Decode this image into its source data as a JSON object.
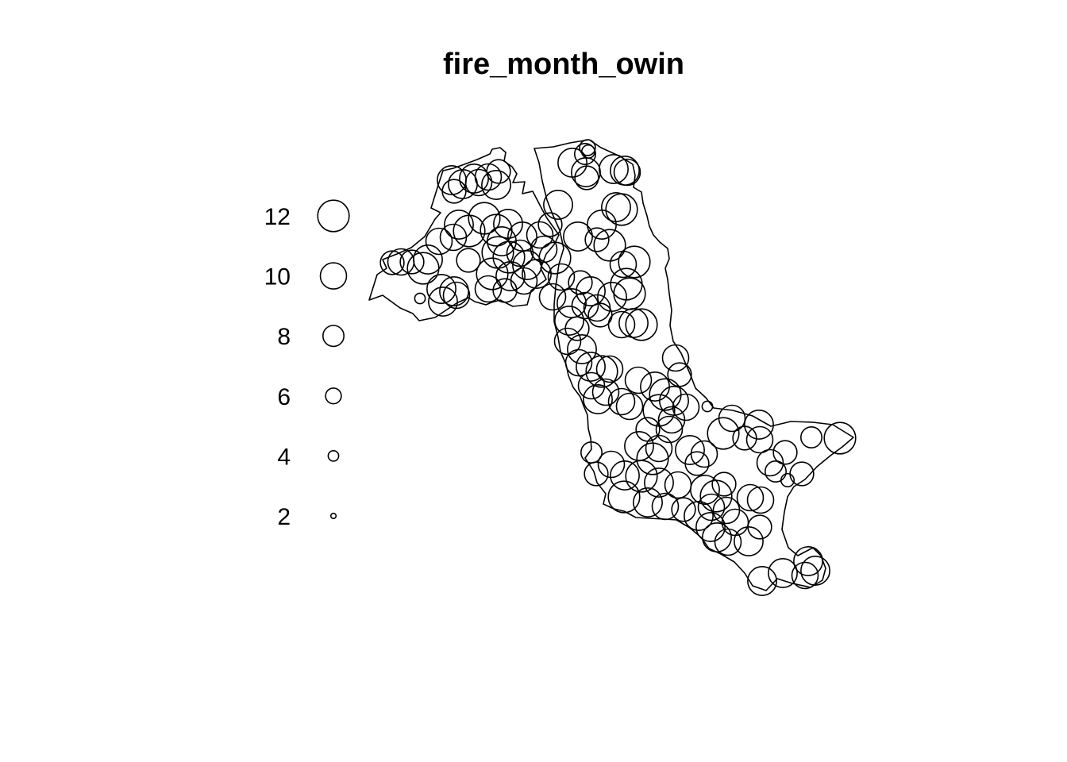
{
  "chart_data": {
    "type": "scatter",
    "title": "fire_month_owin",
    "xlabel": "",
    "ylabel": "",
    "mark_attribute": "month",
    "legend": {
      "position": "left",
      "entries": [
        {
          "label": "12",
          "value": 12
        },
        {
          "label": "10",
          "value": 10
        },
        {
          "label": "8",
          "value": 8
        },
        {
          "label": "6",
          "value": 6
        },
        {
          "label": "4",
          "value": 4
        },
        {
          "label": "2",
          "value": 2
        }
      ]
    },
    "grid": false,
    "points": [
      {
        "x": [
          740,
          186
        ],
        "m": 6
      },
      {
        "x": [
          741,
          191
        ],
        "m": 5
      },
      {
        "x": [
          737,
          194
        ],
        "m": 8
      },
      {
        "x": [
          738,
          217
        ],
        "m": 11
      },
      {
        "x": [
          721,
          205
        ],
        "m": 11
      },
      {
        "x": [
          773,
          213
        ],
        "m": 11
      },
      {
        "x": [
          787,
          215
        ],
        "m": 11
      },
      {
        "x": [
          790,
          217
        ],
        "m": 10
      },
      {
        "x": [
          739,
          224
        ],
        "m": 9
      },
      {
        "x": [
          569,
          227
        ],
        "m": 11
      },
      {
        "x": [
          597,
          225
        ],
        "m": 11
      },
      {
        "x": [
          603,
          230
        ],
        "m": 10
      },
      {
        "x": [
          625,
          233
        ],
        "m": 11
      },
      {
        "x": [
          615,
          223
        ],
        "m": 10
      },
      {
        "x": [
          583,
          232
        ],
        "m": 11
      },
      {
        "x": [
          572,
          241
        ],
        "m": 9
      },
      {
        "x": [
          628,
          216
        ],
        "m": 9
      },
      {
        "x": [
          703,
          258
        ],
        "m": 11
      },
      {
        "x": [
          776,
          261
        ],
        "m": 11
      },
      {
        "x": [
          783,
          264
        ],
        "m": 12
      },
      {
        "x": [
          758,
          283
        ],
        "m": 11
      },
      {
        "x": [
          728,
          298
        ],
        "m": 11
      },
      {
        "x": [
          752,
          302
        ],
        "m": 9
      },
      {
        "x": [
          768,
          309
        ],
        "m": 12
      },
      {
        "x": [
          799,
          330
        ],
        "m": 12
      },
      {
        "x": [
          785,
          333
        ],
        "m": 10
      },
      {
        "x": [
          578,
          283
        ],
        "m": 11
      },
      {
        "x": [
          591,
          291
        ],
        "m": 12
      },
      {
        "x": [
          571,
          299
        ],
        "m": 10
      },
      {
        "x": [
          610,
          275
        ],
        "m": 12
      },
      {
        "x": [
          625,
          290
        ],
        "m": 12
      },
      {
        "x": [
          640,
          282
        ],
        "m": 11
      },
      {
        "x": [
          632,
          304
        ],
        "m": 11
      },
      {
        "x": [
          658,
          298
        ],
        "m": 11
      },
      {
        "x": [
          680,
          296
        ],
        "m": 10
      },
      {
        "x": [
          693,
          283
        ],
        "m": 9
      },
      {
        "x": [
          627,
          318
        ],
        "m": 12
      },
      {
        "x": [
          641,
          324
        ],
        "m": 12
      },
      {
        "x": [
          655,
          319
        ],
        "m": 10
      },
      {
        "x": [
          664,
          334
        ],
        "m": 11
      },
      {
        "x": [
          685,
          314
        ],
        "m": 10
      },
      {
        "x": [
          699,
          325
        ],
        "m": 12
      },
      {
        "x": [
          620,
          345
        ],
        "m": 12
      },
      {
        "x": [
          643,
          348
        ],
        "m": 11
      },
      {
        "x": [
          660,
          354
        ],
        "m": 10
      },
      {
        "x": [
          676,
          345
        ],
        "m": 11
      },
      {
        "x": [
          494,
          331
        ],
        "m": 9
      },
      {
        "x": [
          505,
          330
        ],
        "m": 10
      },
      {
        "x": [
          519,
          330
        ],
        "m": 9
      },
      {
        "x": [
          539,
          327
        ],
        "m": 11
      },
      {
        "x": [
          533,
          338
        ],
        "m": 12
      },
      {
        "x": [
          553,
          304
        ],
        "m": 10
      },
      {
        "x": [
          590,
          328
        ],
        "m": 9
      },
      {
        "x": [
          556,
          364
        ],
        "m": 11
      },
      {
        "x": [
          572,
          367
        ],
        "m": 11
      },
      {
        "x": [
          575,
          372
        ],
        "m": 10
      },
      {
        "x": [
          558,
          380
        ],
        "m": 11
      },
      {
        "x": [
          529,
          376
        ],
        "m": 4
      },
      {
        "x": [
          615,
          364
        ],
        "m": 10
      },
      {
        "x": [
          636,
          366
        ],
        "m": 9
      },
      {
        "x": [
          707,
          349
        ],
        "m": 10
      },
      {
        "x": [
          731,
          356
        ],
        "m": 9
      },
      {
        "x": [
          744,
          367
        ],
        "m": 11
      },
      {
        "x": [
          789,
          358
        ],
        "m": 12
      },
      {
        "x": [
          793,
          370
        ],
        "m": 12
      },
      {
        "x": [
          771,
          374
        ],
        "m": 11
      },
      {
        "x": [
          696,
          374
        ],
        "m": 10
      },
      {
        "x": [
          720,
          382
        ],
        "m": 11
      },
      {
        "x": [
          737,
          385
        ],
        "m": 10
      },
      {
        "x": [
          752,
          388
        ],
        "m": 10
      },
      {
        "x": [
          717,
          404
        ],
        "m": 11
      },
      {
        "x": [
          727,
          414
        ],
        "m": 9
      },
      {
        "x": [
          756,
          397
        ],
        "m": 9
      },
      {
        "x": [
          783,
          409
        ],
        "m": 10
      },
      {
        "x": [
          798,
          407
        ],
        "m": 11
      },
      {
        "x": [
          808,
          409
        ],
        "m": 12
      },
      {
        "x": [
          715,
          430
        ],
        "m": 10
      },
      {
        "x": [
          733,
          440
        ],
        "m": 11
      },
      {
        "x": [
          729,
          457
        ],
        "m": 10
      },
      {
        "x": [
          744,
          462
        ],
        "m": 11
      },
      {
        "x": [
          758,
          468
        ],
        "m": 12
      },
      {
        "x": [
          768,
          465
        ],
        "m": 10
      },
      {
        "x": [
          745,
          486
        ],
        "m": 10
      },
      {
        "x": [
          763,
          494
        ],
        "m": 10
      },
      {
        "x": [
          753,
          503
        ],
        "m": 11
      },
      {
        "x": [
          783,
          506
        ],
        "m": 10
      },
      {
        "x": [
          793,
          512
        ],
        "m": 10
      },
      {
        "x": [
          851,
          451
        ],
        "m": 10
      },
      {
        "x": [
          856,
          472
        ],
        "m": 9
      },
      {
        "x": [
          825,
          487
        ],
        "m": 11
      },
      {
        "x": [
          804,
          479
        ],
        "m": 10
      },
      {
        "x": [
          838,
          497
        ],
        "m": 12
      },
      {
        "x": [
          849,
          505
        ],
        "m": 11
      },
      {
        "x": [
          864,
          513
        ],
        "m": 10
      },
      {
        "x": [
          830,
          517
        ],
        "m": 12
      },
      {
        "x": [
          846,
          529
        ],
        "m": 10
      },
      {
        "x": [
          891,
          512
        ],
        "m": 4
      },
      {
        "x": [
          843,
          541
        ],
        "m": 10
      },
      {
        "x": [
          816,
          541
        ],
        "m": 9
      },
      {
        "x": [
          922,
          527
        ],
        "m": 10
      },
      {
        "x": [
          956,
          535
        ],
        "m": 11
      },
      {
        "x": [
          911,
          546
        ],
        "m": 12
      },
      {
        "x": [
          938,
          552
        ],
        "m": 9
      },
      {
        "x": [
          957,
          554
        ],
        "m": 10
      },
      {
        "x": [
          1022,
          551
        ],
        "m": 8
      },
      {
        "x": [
          1058,
          552
        ],
        "m": 12
      },
      {
        "x": [
          805,
          562
        ],
        "m": 11
      },
      {
        "x": [
          830,
          565
        ],
        "m": 10
      },
      {
        "x": [
          822,
          578
        ],
        "m": 12
      },
      {
        "x": [
          869,
          567
        ],
        "m": 11
      },
      {
        "x": [
          887,
          572
        ],
        "m": 10
      },
      {
        "x": [
          878,
          584
        ],
        "m": 9
      },
      {
        "x": [
          745,
          570
        ],
        "m": 8
      },
      {
        "x": [
          770,
          585
        ],
        "m": 10
      },
      {
        "x": [
          751,
          597
        ],
        "m": 9
      },
      {
        "x": [
          787,
          599
        ],
        "m": 11
      },
      {
        "x": [
          808,
          600
        ],
        "m": 12
      },
      {
        "x": [
          830,
          608
        ],
        "m": 11
      },
      {
        "x": [
          854,
          611
        ],
        "m": 10
      },
      {
        "x": [
          786,
          626
        ],
        "m": 12
      },
      {
        "x": [
          816,
          633
        ],
        "m": 11
      },
      {
        "x": [
          838,
          638
        ],
        "m": 10
      },
      {
        "x": [
          861,
          642
        ],
        "m": 9
      },
      {
        "x": [
          888,
          617
        ],
        "m": 11
      },
      {
        "x": [
          902,
          625
        ],
        "m": 12
      },
      {
        "x": [
          896,
          639
        ],
        "m": 10
      },
      {
        "x": [
          880,
          650
        ],
        "m": 11
      },
      {
        "x": [
          915,
          643
        ],
        "m": 10
      },
      {
        "x": [
          926,
          658
        ],
        "m": 10
      },
      {
        "x": [
          945,
          627
        ],
        "m": 10
      },
      {
        "x": [
          958,
          630
        ],
        "m": 10
      },
      {
        "x": [
          912,
          610
        ],
        "m": 9
      },
      {
        "x": [
          895,
          664
        ],
        "m": 11
      },
      {
        "x": [
          903,
          677
        ],
        "m": 11
      },
      {
        "x": [
          917,
          683
        ],
        "m": 10
      },
      {
        "x": [
          943,
          682
        ],
        "m": 11
      },
      {
        "x": [
          957,
          664
        ],
        "m": 9
      },
      {
        "x": [
          970,
          583
        ],
        "m": 10
      },
      {
        "x": [
          989,
          570
        ],
        "m": 9
      },
      {
        "x": [
          977,
          594
        ],
        "m": 8
      },
      {
        "x": [
          992,
          605
        ],
        "m": 5
      },
      {
        "x": [
          1010,
          597
        ],
        "m": 9
      },
      {
        "x": [
          960,
          732
        ],
        "m": 11
      },
      {
        "x": [
          986,
          722
        ],
        "m": 11
      },
      {
        "x": [
          1018,
          707
        ],
        "m": 11
      },
      {
        "x": [
          1027,
          719
        ],
        "m": 11
      },
      {
        "x": [
          1014,
          725
        ],
        "m": 10
      }
    ]
  }
}
